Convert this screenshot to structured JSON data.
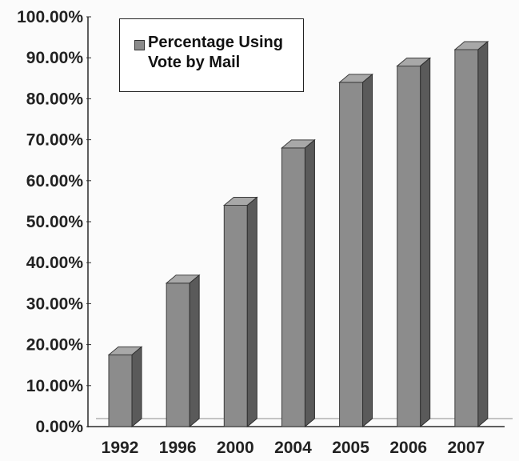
{
  "chart_data": {
    "type": "bar",
    "categories": [
      "1992",
      "1996",
      "2000",
      "2004",
      "2005",
      "2006",
      "2007"
    ],
    "series": [
      {
        "name": "Percentage Using Vote by Mail",
        "values": [
          17.5,
          35,
          54,
          68,
          84,
          88,
          92
        ]
      }
    ],
    "ylim": [
      0,
      100
    ],
    "yticks": [
      "0.00%",
      "10.00%",
      "20.00%",
      "30.00%",
      "40.00%",
      "50.00%",
      "60.00%",
      "70.00%",
      "80.00%",
      "90.00%",
      "100.00%"
    ],
    "grid": false,
    "legend": {
      "position": "top-left",
      "label_lines": [
        "Percentage Using",
        "Vote by Mail"
      ]
    },
    "colors": {
      "bar_front": "#8c8c8c",
      "bar_top": "#a8a8a8",
      "bar_side": "#5a5a5a",
      "axis": "#2a2a2a"
    }
  }
}
